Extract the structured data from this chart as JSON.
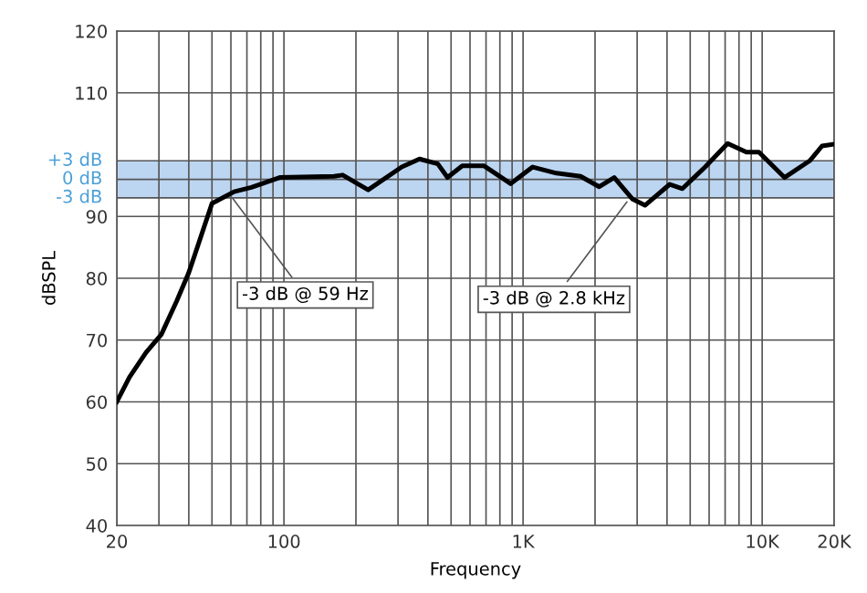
{
  "chart_data": {
    "type": "line",
    "xlabel": "Frequency",
    "ylabel": "dBSPL",
    "x": [
      20,
      22.6,
      26.5,
      30.7,
      35.6,
      39.9,
      42.3,
      50,
      61.9,
      73.1,
      96,
      162,
      176,
      225,
      311,
      369,
      440,
      483,
      557,
      685,
      888,
      1097,
      1378,
      1740,
      2083,
      2406,
      2872,
      3235,
      4107,
      4640,
      5776,
      7170,
      8590,
      9690,
      12400,
      15800,
      17800,
      20000
    ],
    "series": [
      {
        "color": "#000000",
        "values": [
          60,
          64,
          68,
          70.9,
          76.3,
          80.8,
          83.7,
          92.1,
          94,
          94.7,
          96.3,
          96.5,
          96.7,
          94.3,
          98,
          99.3,
          98.5,
          96.3,
          98.2,
          98.2,
          95.3,
          98,
          97,
          96.5,
          94.8,
          96.3,
          92.8,
          91.8,
          95.2,
          94.5,
          98,
          101.8,
          100.4,
          100.4,
          96.3,
          99,
          101.4,
          101.7
        ]
      }
    ],
    "log": "x",
    "xlim": [
      20,
      20000
    ],
    "ylim": [
      40,
      120
    ],
    "xticks": [
      20,
      {
        "value": 30,
        "label": null
      },
      {
        "value": 40,
        "label": null
      },
      {
        "value": 50,
        "label": null
      },
      {
        "value": 60,
        "label": null
      },
      {
        "value": 70,
        "label": null
      },
      {
        "value": 80,
        "label": null
      },
      {
        "value": 90,
        "label": null
      },
      100,
      {
        "value": 200,
        "label": null
      },
      {
        "value": 300,
        "label": null
      },
      {
        "value": 400,
        "label": null
      },
      {
        "value": 500,
        "label": null
      },
      {
        "value": 600,
        "label": null
      },
      {
        "value": 700,
        "label": null
      },
      {
        "value": 800,
        "label": null
      },
      {
        "value": 900,
        "label": null
      },
      {
        "value": 1000,
        "label": "1K"
      },
      {
        "value": 2000,
        "label": null
      },
      {
        "value": 3000,
        "label": null
      },
      {
        "value": 4000,
        "label": null
      },
      {
        "value": 5000,
        "label": null
      },
      {
        "value": 6000,
        "label": null
      },
      {
        "value": 7000,
        "label": null
      },
      {
        "value": 8000,
        "label": null
      },
      {
        "value": 9000,
        "label": null
      },
      {
        "value": 10000,
        "label": "10K"
      },
      {
        "value": 20000,
        "label": "20K"
      }
    ],
    "yticks": [
      40,
      50,
      60,
      70,
      80,
      90,
      110,
      120
    ],
    "ref_lines": [
      {
        "axis": "y",
        "value": 99,
        "label": "+3 dB",
        "color": "#555555"
      },
      {
        "axis": "y",
        "value": 96,
        "label": "0 dB",
        "color": "#555555"
      },
      {
        "axis": "y",
        "value": 93,
        "label": "-3 dB",
        "color": "#555555"
      }
    ],
    "bands": [
      {
        "axis": "y",
        "from": 93,
        "to": 99,
        "color": "#bcd6f2"
      }
    ],
    "grid": true,
    "line_style": "solid",
    "marker": "none",
    "annotations": [
      {
        "text": "-3 dB @ 59 Hz",
        "x": 59,
        "y": 93.7
      },
      {
        "text": "-3 dB @ 2.8 kHz",
        "x": 2800,
        "y": 93
      }
    ]
  }
}
